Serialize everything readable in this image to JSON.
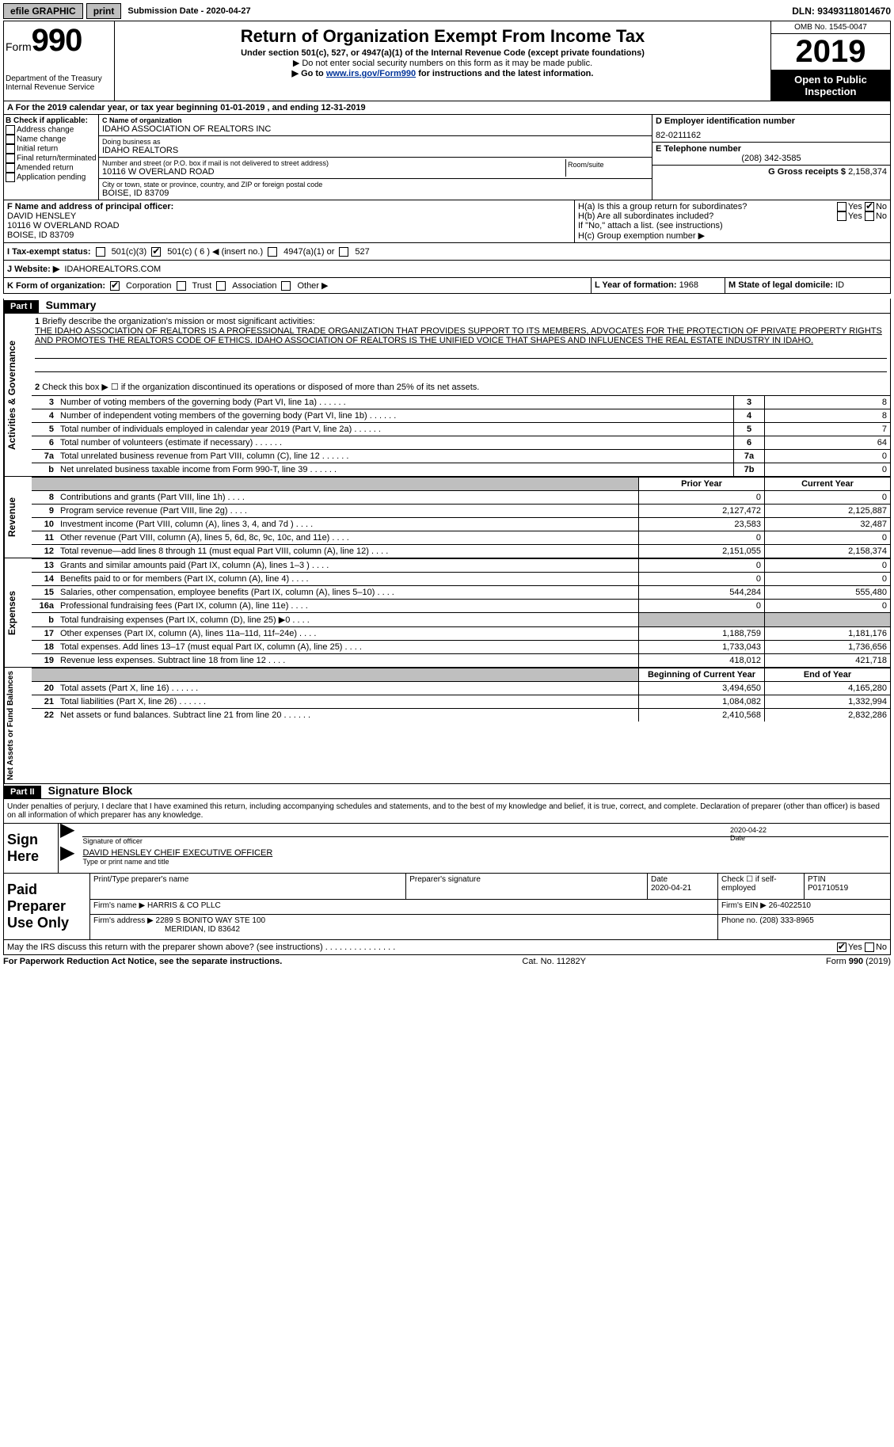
{
  "topbar": {
    "efile": "efile GRAPHIC",
    "print": "print",
    "subdate_label": "Submission Date - ",
    "subdate": "2020-04-27",
    "dln_label": "DLN: ",
    "dln": "93493118014670"
  },
  "header": {
    "form": "Form",
    "formno": "990",
    "dept1": "Department of the Treasury",
    "dept2": "Internal Revenue Service",
    "title": "Return of Organization Exempt From Income Tax",
    "sub1": "Under section 501(c), 527, or 4947(a)(1) of the Internal Revenue Code (except private foundations)",
    "sub2": "▶ Do not enter social security numbers on this form as it may be made public.",
    "sub3a": "▶ Go to ",
    "sub3link": "www.irs.gov/Form990",
    "sub3b": " for instructions and the latest information.",
    "omb": "OMB No. 1545-0047",
    "year": "2019",
    "open": "Open to Public Inspection"
  },
  "rowA": {
    "text": "A For the 2019 calendar year, or tax year beginning ",
    "begin": "01-01-2019",
    "mid": "   , and ending ",
    "end": "12-31-2019"
  },
  "colB": {
    "label": "B Check if applicable:",
    "items": [
      "Address change",
      "Name change",
      "Initial return",
      "Final return/terminated",
      "Amended return",
      "Application pending"
    ]
  },
  "colC": {
    "nameLabel": "C Name of organization",
    "name": "IDAHO ASSOCIATION OF REALTORS INC",
    "dbaLabel": "Doing business as",
    "dba": "IDAHO REALTORS",
    "streetLabel": "Number and street (or P.O. box if mail is not delivered to street address)",
    "street": "10116 W OVERLAND ROAD",
    "room": "Room/suite",
    "cityLabel": "City or town, state or province, country, and ZIP or foreign postal code",
    "city": "BOISE, ID  83709"
  },
  "colD": {
    "einLabel": "D Employer identification number",
    "ein": "82-0211162",
    "telLabel": "E Telephone number",
    "tel": "(208) 342-3585",
    "grossLabel": "G Gross receipts $ ",
    "gross": "2,158,374"
  },
  "rowF": {
    "label": "F Name and address of principal officer:",
    "name": "DAVID HENSLEY",
    "street": "10116 W OVERLAND ROAD",
    "city": "BOISE, ID  83709"
  },
  "rowH": {
    "ha": "H(a)  Is this a group return for subordinates?",
    "hb": "H(b)  Are all subordinates included?",
    "hbnote": "If \"No,\" attach a list. (see instructions)",
    "hc": "H(c)  Group exemption number ▶",
    "yes": "Yes",
    "no": "No"
  },
  "rowI": {
    "label": "I  Tax-exempt status:",
    "o1": "501(c)(3)",
    "o2a": "501(c) ( ",
    "o2num": "6",
    "o2b": " ) ◀ (insert no.)",
    "o3": "4947(a)(1) or",
    "o4": "527"
  },
  "rowJ": {
    "label": "J  Website: ▶",
    "site": "IDAHOREALTORS.COM"
  },
  "rowK": {
    "label": "K Form of organization:",
    "o1": "Corporation",
    "o2": "Trust",
    "o3": "Association",
    "o4": "Other ▶"
  },
  "rowL": {
    "label": "L Year of formation: ",
    "val": "1968"
  },
  "rowM": {
    "label": "M State of legal domicile: ",
    "val": "ID"
  },
  "part1": {
    "tag": "Part I",
    "title": "Summary",
    "line1label": "Briefly describe the organization's mission or most significant activities:",
    "mission": "THE IDAHO ASSOCIATION OF REALTORS IS A PROFESSIONAL TRADE ORGANIZATION THAT PROVIDES SUPPORT TO ITS MEMBERS, ADVOCATES FOR THE PROTECTION OF PRIVATE PROPERTY RIGHTS AND PROMOTES THE REALTORS CODE OF ETHICS. IDAHO ASSOCIATION OF REALTORS IS THE UNIFIED VOICE THAT SHAPES AND INFLUENCES THE REAL ESTATE INDUSTRY IN IDAHO.",
    "line2": "Check this box ▶ ☐  if the organization discontinued its operations or disposed of more than 25% of its net assets.",
    "vtab1": "Activities & Governance",
    "vtab2": "Revenue",
    "vtab3": "Expenses",
    "vtab4": "Net Assets or Fund Balances",
    "hdr_prior": "Prior Year",
    "hdr_curr": "Current Year",
    "hdr_boy": "Beginning of Current Year",
    "hdr_eoy": "End of Year",
    "lines_gov": [
      {
        "n": "3",
        "t": "Number of voting members of the governing body (Part VI, line 1a)",
        "box": "3",
        "v": "8"
      },
      {
        "n": "4",
        "t": "Number of independent voting members of the governing body (Part VI, line 1b)",
        "box": "4",
        "v": "8"
      },
      {
        "n": "5",
        "t": "Total number of individuals employed in calendar year 2019 (Part V, line 2a)",
        "box": "5",
        "v": "7"
      },
      {
        "n": "6",
        "t": "Total number of volunteers (estimate if necessary)",
        "box": "6",
        "v": "64"
      },
      {
        "n": "7a",
        "t": "Total unrelated business revenue from Part VIII, column (C), line 12",
        "box": "7a",
        "v": "0"
      },
      {
        "n": "b",
        "t": "Net unrelated business taxable income from Form 990-T, line 39",
        "box": "7b",
        "v": "0"
      }
    ],
    "lines_rev": [
      {
        "n": "8",
        "t": "Contributions and grants (Part VIII, line 1h)",
        "p": "0",
        "c": "0"
      },
      {
        "n": "9",
        "t": "Program service revenue (Part VIII, line 2g)",
        "p": "2,127,472",
        "c": "2,125,887"
      },
      {
        "n": "10",
        "t": "Investment income (Part VIII, column (A), lines 3, 4, and 7d )",
        "p": "23,583",
        "c": "32,487"
      },
      {
        "n": "11",
        "t": "Other revenue (Part VIII, column (A), lines 5, 6d, 8c, 9c, 10c, and 11e)",
        "p": "0",
        "c": "0"
      },
      {
        "n": "12",
        "t": "Total revenue—add lines 8 through 11 (must equal Part VIII, column (A), line 12)",
        "p": "2,151,055",
        "c": "2,158,374"
      }
    ],
    "lines_exp": [
      {
        "n": "13",
        "t": "Grants and similar amounts paid (Part IX, column (A), lines 1–3 )",
        "p": "0",
        "c": "0"
      },
      {
        "n": "14",
        "t": "Benefits paid to or for members (Part IX, column (A), line 4)",
        "p": "0",
        "c": "0"
      },
      {
        "n": "15",
        "t": "Salaries, other compensation, employee benefits (Part IX, column (A), lines 5–10)",
        "p": "544,284",
        "c": "555,480"
      },
      {
        "n": "16a",
        "t": "Professional fundraising fees (Part IX, column (A), line 11e)",
        "p": "0",
        "c": "0"
      },
      {
        "n": "b",
        "t": "Total fundraising expenses (Part IX, column (D), line 25) ▶0",
        "p": "",
        "c": "",
        "shaded": true
      },
      {
        "n": "17",
        "t": "Other expenses (Part IX, column (A), lines 11a–11d, 11f–24e)",
        "p": "1,188,759",
        "c": "1,181,176"
      },
      {
        "n": "18",
        "t": "Total expenses. Add lines 13–17 (must equal Part IX, column (A), line 25)",
        "p": "1,733,043",
        "c": "1,736,656"
      },
      {
        "n": "19",
        "t": "Revenue less expenses. Subtract line 18 from line 12",
        "p": "418,012",
        "c": "421,718"
      }
    ],
    "lines_net": [
      {
        "n": "20",
        "t": "Total assets (Part X, line 16)",
        "p": "3,494,650",
        "c": "4,165,280"
      },
      {
        "n": "21",
        "t": "Total liabilities (Part X, line 26)",
        "p": "1,084,082",
        "c": "1,332,994"
      },
      {
        "n": "22",
        "t": "Net assets or fund balances. Subtract line 21 from line 20",
        "p": "2,410,568",
        "c": "2,832,286"
      }
    ]
  },
  "part2": {
    "tag": "Part II",
    "title": "Signature Block",
    "penalties": "Under penalties of perjury, I declare that I have examined this return, including accompanying schedules and statements, and to the best of my knowledge and belief, it is true, correct, and complete. Declaration of preparer (other than officer) is based on all information of which preparer has any knowledge.",
    "signhere": "Sign Here",
    "sig_officer": "Signature of officer",
    "sig_date_label": "Date",
    "sig_date": "2020-04-22",
    "officer_name": "DAVID HENSLEY CHEIF EXECUTIVE OFFICER",
    "type_name": "Type or print name and title",
    "paid": "Paid Preparer Use Only",
    "prep_name_label": "Print/Type preparer's name",
    "prep_sig_label": "Preparer's signature",
    "prep_date_label": "Date",
    "prep_date": "2020-04-21",
    "check_self": "Check ☐ if self-employed",
    "ptin_label": "PTIN",
    "ptin": "P01710519",
    "firm_name_label": "Firm's name    ▶ ",
    "firm_name": "HARRIS & CO PLLC",
    "firm_ein_label": "Firm's EIN ▶ ",
    "firm_ein": "26-4022510",
    "firm_addr_label": "Firm's address ▶ ",
    "firm_addr1": "2289 S BONITO WAY STE 100",
    "firm_addr2": "MERIDIAN, ID  83642",
    "phone_label": "Phone no. ",
    "phone": "(208) 333-8965",
    "discuss": "May the IRS discuss this return with the preparer shown above? (see instructions)",
    "yes": "Yes",
    "no": "No"
  },
  "footer": {
    "pra": "For Paperwork Reduction Act Notice, see the separate instructions.",
    "cat": "Cat. No. 11282Y",
    "form": "Form 990 (2019)"
  }
}
